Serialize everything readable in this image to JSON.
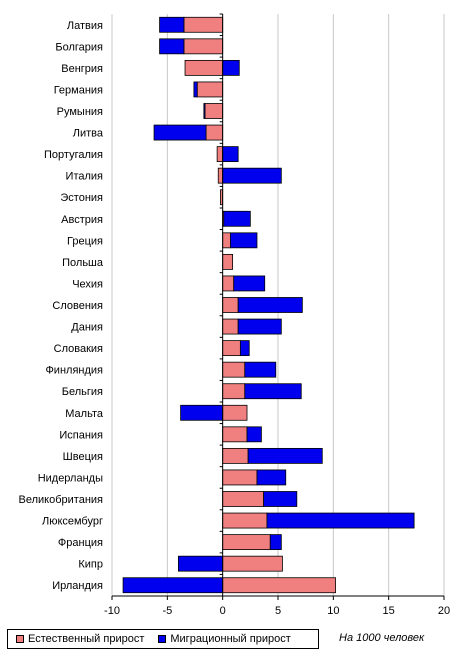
{
  "chart_data": {
    "type": "bar",
    "orientation": "horizontal",
    "stacked": "diverging",
    "categories": [
      "Латвия",
      "Болгария",
      "Венгрия",
      "Германия",
      "Румыния",
      "Литва",
      "Португалия",
      "Италия",
      "Эстония",
      "Австрия",
      "Греция",
      "Польша",
      "Чехия",
      "Словения",
      "Дания",
      "Словакия",
      "Финляндия",
      "Бельгия",
      "Мальта",
      "Испания",
      "Швеция",
      "Нидерланды",
      "Великобритания",
      "Люксембург",
      "Франция",
      "Кипр",
      "Ирландия"
    ],
    "series": [
      {
        "name": "Естественный прирост",
        "color": "#f08080",
        "values": [
          -3.5,
          -3.5,
          -3.4,
          -2.3,
          -1.6,
          -1.5,
          -0.5,
          -0.4,
          -0.2,
          0.1,
          0.7,
          0.9,
          1.0,
          1.4,
          1.4,
          1.6,
          2.0,
          2.0,
          2.2,
          2.2,
          2.3,
          3.1,
          3.7,
          4.0,
          4.3,
          5.4,
          10.2
        ]
      },
      {
        "name": "Миграционный прирост",
        "color": "#0000ee",
        "values": [
          -2.2,
          -2.2,
          1.5,
          -0.3,
          -0.1,
          -4.7,
          1.4,
          5.3,
          0.0,
          2.4,
          2.4,
          0.0,
          2.8,
          5.8,
          3.9,
          0.8,
          2.8,
          5.1,
          -3.8,
          1.3,
          6.7,
          2.6,
          3.0,
          13.3,
          1.0,
          -4.0,
          -9.0
        ]
      }
    ],
    "xlim": [
      -10,
      20
    ],
    "xticks": [
      "-10",
      "-5",
      "0",
      "5",
      "10",
      "15",
      "20"
    ],
    "grid": "vertical",
    "legend": "bottom-left",
    "note": "На 1000 человек"
  }
}
